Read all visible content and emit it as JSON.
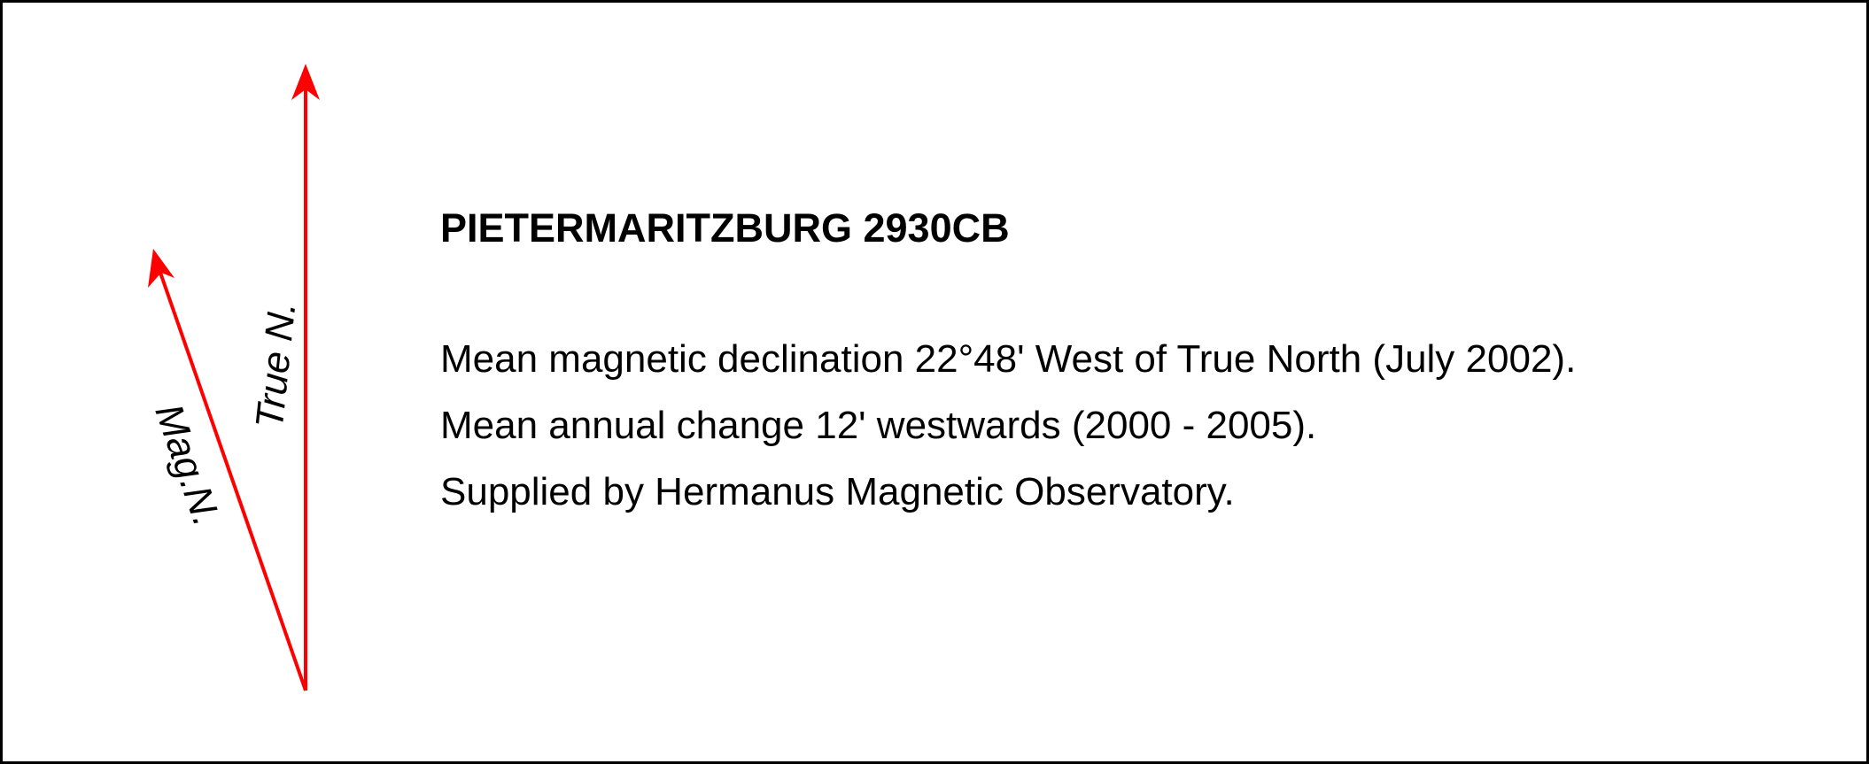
{
  "diagram": {
    "arrow_color": "#ff0000",
    "true_north_label": "True N.",
    "magnetic_north_label": "Mag.N."
  },
  "info": {
    "title": "PIETERMARITZBURG 2930CB",
    "lines": [
      "Mean magnetic declination 22°48' West of True North (July 2002).",
      "Mean annual change 12' westwards (2000 - 2005).",
      "Supplied by Hermanus Magnetic Observatory."
    ]
  }
}
